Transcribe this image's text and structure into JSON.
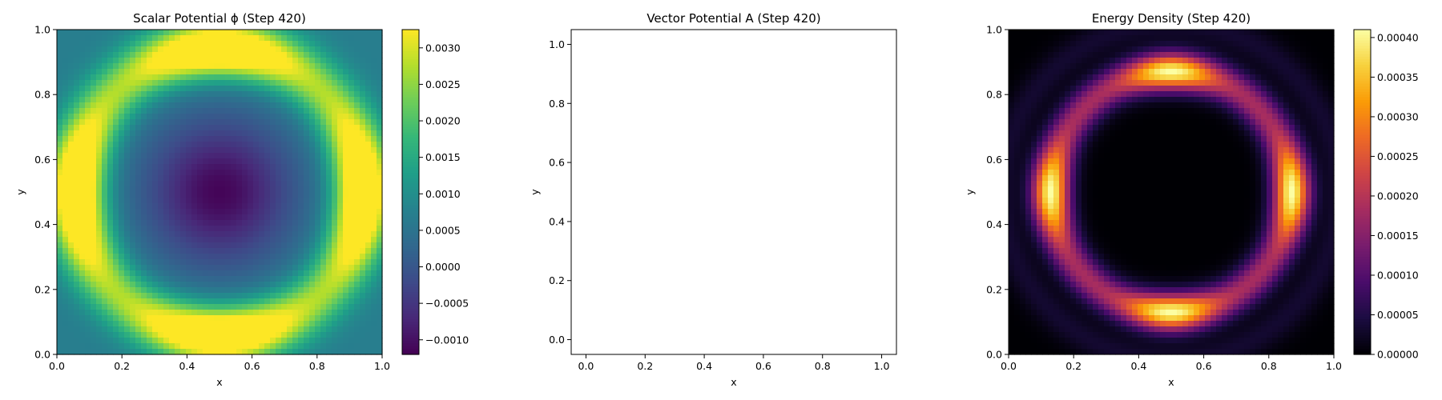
{
  "chart_data": [
    {
      "type": "heatmap",
      "title": "Scalar Potential ϕ (Step 420)",
      "xlabel": "x",
      "ylabel": "y",
      "xlim": [
        0,
        1
      ],
      "ylim": [
        0,
        1
      ],
      "xticks": [
        "0.0",
        "0.2",
        "0.4",
        "0.6",
        "0.8",
        "1.0"
      ],
      "yticks": [
        "0.0",
        "0.2",
        "0.4",
        "0.6",
        "0.8",
        "1.0"
      ],
      "colormap": "viridis",
      "colorbar": {
        "min": -0.0012,
        "max": 0.00325,
        "ticks": [
          -0.001,
          -0.0005,
          0.0,
          0.0005,
          0.001,
          0.0015,
          0.002,
          0.0025,
          0.003
        ],
        "tick_labels": [
          "−0.0010",
          "−0.0005",
          "0.0000",
          "0.0005",
          "0.0010",
          "0.0015",
          "0.0020",
          "0.0025",
          "0.0030"
        ]
      },
      "field": "potential well: minimum ≈ −0.0012 at center (0.5, 0.5), ring of ≈ 0.0030 near r ≈ 0.42, edges ≈ 0.0005"
    },
    {
      "type": "scatter",
      "title": "Vector Potential A (Step 420)",
      "xlabel": "x",
      "ylabel": "y",
      "xlim": [
        -0.05,
        1.05
      ],
      "ylim": [
        -0.05,
        1.05
      ],
      "xticks": [
        "0.0",
        "0.2",
        "0.4",
        "0.6",
        "0.8",
        "1.0"
      ],
      "yticks": [
        "0.0",
        "0.2",
        "0.4",
        "0.6",
        "0.8",
        "1.0"
      ],
      "series": []
    },
    {
      "type": "heatmap",
      "title": "Energy Density (Step 420)",
      "xlabel": "x",
      "ylabel": "y",
      "xlim": [
        0,
        1
      ],
      "ylim": [
        0,
        1
      ],
      "xticks": [
        "0.0",
        "0.2",
        "0.4",
        "0.6",
        "0.8",
        "1.0"
      ],
      "yticks": [
        "0.0",
        "0.2",
        "0.4",
        "0.6",
        "0.8",
        "1.0"
      ],
      "colormap": "inferno",
      "colorbar": {
        "min": 0,
        "max": 0.00041,
        "ticks": [
          0,
          5e-05,
          0.0001,
          0.00015,
          0.0002,
          0.00025,
          0.0003,
          0.00035,
          0.0004
        ],
        "tick_labels": [
          "0.00000",
          "0.00005",
          "0.00010",
          "0.00015",
          "0.00020",
          "0.00025",
          "0.00030",
          "0.00035",
          "0.00040"
        ]
      },
      "field": "octagonal bright ring at r ≈ 0.36 with peaks ≈ 0.00040 at (0.12,0.5), (0.88,0.5), (0.5,0.12), (0.5,0.88); dark interior ≈ 0"
    }
  ]
}
